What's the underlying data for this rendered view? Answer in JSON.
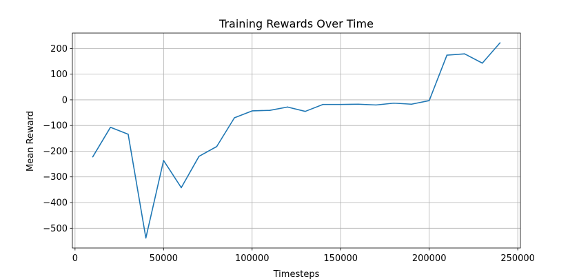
{
  "chart_data": {
    "type": "line",
    "title": "Training Rewards Over Time",
    "xlabel": "Timesteps",
    "ylabel": "Mean Reward",
    "xlim": [
      -1500,
      251500
    ],
    "ylim": [
      -577,
      260
    ],
    "xticks": [
      0,
      50000,
      100000,
      150000,
      200000,
      250000
    ],
    "yticks": [
      -500,
      -400,
      -300,
      -200,
      -100,
      0,
      100,
      200
    ],
    "grid": true,
    "series": [
      {
        "color": "#1f77b4",
        "x": [
          10000,
          20000,
          30000,
          40000,
          50000,
          60000,
          70000,
          80000,
          90000,
          100000,
          110000,
          120000,
          130000,
          140000,
          150000,
          160000,
          170000,
          180000,
          190000,
          200000,
          210000,
          220000,
          230000,
          240000
        ],
        "y": [
          -222,
          -107,
          -134,
          -538,
          -236,
          -342,
          -220,
          -182,
          -70,
          -43,
          -41,
          -28,
          -45,
          -18,
          -18,
          -17,
          -20,
          -13,
          -17,
          -3,
          174,
          179,
          143,
          222
        ]
      }
    ]
  }
}
